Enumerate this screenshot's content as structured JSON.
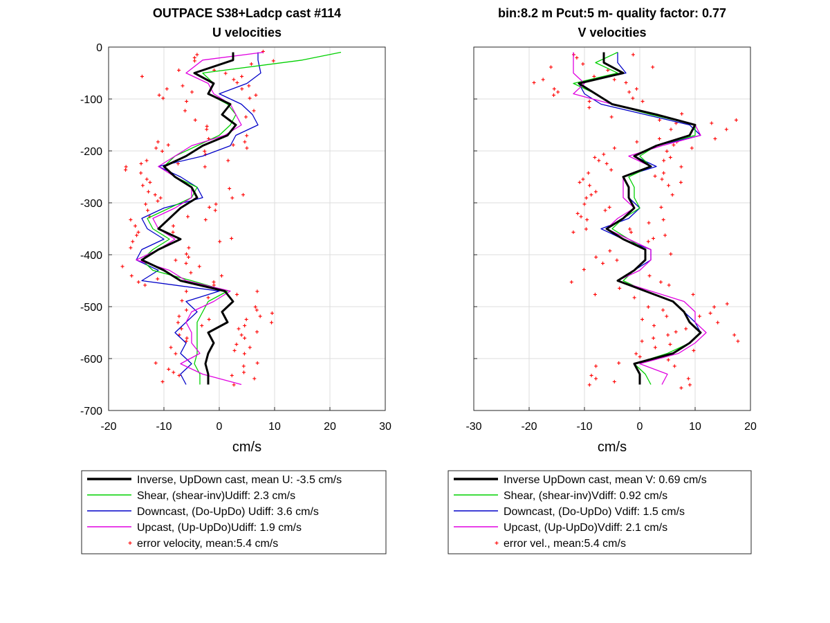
{
  "chart_data": [
    {
      "type": "line",
      "title": "OUTPACE S38+Ladcp cast #114",
      "subtitle": "U velocities",
      "xlabel": "cm/s",
      "ylabel": "",
      "xlim": [
        -20,
        30
      ],
      "ylim": [
        -700,
        0
      ],
      "xticks": [
        "-20",
        "-10",
        "0",
        "10",
        "20",
        "30"
      ],
      "yticks": [
        "0",
        "-100",
        "-200",
        "-300",
        "-400",
        "-500",
        "-600",
        "-700"
      ],
      "grid": true,
      "legend_position": "below",
      "depth": [
        -10,
        -25,
        -50,
        -70,
        -90,
        -110,
        -130,
        -150,
        -170,
        -190,
        -210,
        -230,
        -250,
        -270,
        -290,
        -310,
        -330,
        -350,
        -370,
        -390,
        -410,
        -430,
        -450,
        -470,
        -490,
        -510,
        -530,
        -550,
        -570,
        -590,
        -610,
        -630,
        -650
      ],
      "series": [
        {
          "name": "Inverse, UpDown cast, mean U:  -3.5 cm/s",
          "color": "#000000",
          "values": [
            2.5,
            2.5,
            -4.5,
            -1,
            -2,
            2,
            0.5,
            3,
            1.5,
            -3,
            -6,
            -10,
            -8,
            -5,
            -4,
            -7,
            -9,
            -11,
            -7,
            -11,
            -14,
            -10,
            -7,
            1,
            2.5,
            0.5,
            1.5,
            -2,
            -1,
            -2,
            -2.5,
            -2,
            -2
          ]
        },
        {
          "name": "Shear, (shear-inv)Udiff:  2.3 cm/s",
          "color": "#00d000",
          "values": [
            22,
            15,
            -3,
            -1,
            -2,
            1.5,
            3,
            2,
            0,
            -4,
            -8,
            -10,
            -8,
            -4,
            -5,
            -9,
            -13,
            -12,
            -9,
            -12,
            -14,
            -12,
            -5,
            1.5,
            -2,
            -3,
            -4,
            -4,
            -4,
            -4,
            -4.5,
            -3.5,
            -3.5
          ]
        },
        {
          "name": "Downcast, (Do-UpDo) Udiff:  3.6 cm/s",
          "color": "#0000c8",
          "values": [
            7,
            7,
            7.5,
            5,
            0,
            4,
            6,
            7,
            3,
            2,
            -3,
            -11,
            -7,
            -4,
            -3,
            -10,
            -14,
            -13,
            -10,
            -14,
            -15,
            -11,
            -14,
            0,
            -6,
            -4,
            -6,
            -8,
            -6,
            -7,
            -5,
            -7,
            -6
          ]
        },
        {
          "name": "Upcast, (Up-UpDo)Udiff:  1.9 cm/s",
          "color": "#e000e0",
          "values": [
            8,
            -3,
            -6,
            -2,
            -1,
            2,
            3,
            4,
            1,
            -5,
            -8,
            -11,
            -8,
            -5,
            -5,
            -8,
            -12,
            -11,
            -8,
            -11,
            -15,
            -9,
            -6,
            2,
            -1,
            -5,
            -6,
            -5,
            -5,
            -3.5,
            -7,
            -3,
            4
          ]
        },
        {
          "name": "error velocity, mean:5.4 cm/s",
          "color": "#ff0000",
          "marker": "dots",
          "values": []
        }
      ]
    },
    {
      "type": "line",
      "title": "bin:8.2 m  Pcut:5 m- quality factor:  0.77",
      "subtitle": "V velocities",
      "xlabel": "cm/s",
      "ylabel": "",
      "xlim": [
        -30,
        20
      ],
      "ylim": [
        -700,
        0
      ],
      "xticks": [
        "-30",
        "-20",
        "-10",
        "0",
        "10",
        "20"
      ],
      "grid": true,
      "legend_position": "below",
      "depth": [
        -10,
        -30,
        -50,
        -70,
        -90,
        -110,
        -130,
        -150,
        -170,
        -190,
        -210,
        -230,
        -250,
        -270,
        -290,
        -310,
        -330,
        -350,
        -370,
        -390,
        -410,
        -430,
        -450,
        -470,
        -490,
        -510,
        -530,
        -550,
        -570,
        -590,
        -610,
        -630,
        -650
      ],
      "series": [
        {
          "name": "Inverse UpDown cast, mean V:  0.69 cm/s",
          "color": "#000000",
          "values": [
            -6.5,
            -6.5,
            -3,
            -11,
            -8,
            -5,
            3,
            10,
            9,
            3,
            -1,
            2,
            -3,
            -2,
            -2,
            -1,
            -3,
            -6,
            -3,
            1,
            1,
            -1,
            -4,
            1,
            6,
            8,
            9,
            11,
            9,
            6,
            -1,
            0,
            0
          ]
        },
        {
          "name": "Shear, (shear-inv)Vdiff:  0.92 cm/s",
          "color": "#00d000",
          "values": [
            -4,
            -8,
            -4,
            -12,
            -8,
            -5,
            2,
            10,
            10,
            3,
            0,
            2,
            -2,
            -1,
            -1,
            0,
            -3,
            -5,
            -2,
            1,
            1,
            -1,
            -3,
            1,
            6,
            8,
            9,
            11,
            9,
            5,
            -1,
            1,
            2
          ]
        },
        {
          "name": "Downcast, (Do-UpDo) Vdiff:  1.5 cm/s",
          "color": "#0000c8",
          "values": [
            -4,
            -4,
            -2.5,
            -11,
            -10,
            -7,
            1,
            9,
            11,
            3,
            -1,
            3,
            -3,
            -2,
            -2,
            0,
            -2,
            -7,
            -3,
            2,
            2,
            -1,
            -4,
            1,
            6,
            8,
            10,
            11,
            9,
            6,
            -1,
            0,
            0
          ]
        },
        {
          "name": "Upcast, (Up-UpDo)Vdiff:  2.1 cm/s",
          "color": "#e000e0",
          "values": [
            -12,
            -12,
            -12,
            -10,
            -12,
            -5,
            3,
            10,
            11,
            4,
            -2,
            2,
            -3,
            -3,
            -3,
            -1,
            -4,
            -6,
            -2,
            2,
            2,
            0,
            -4,
            2,
            8,
            10,
            10,
            12,
            10,
            7,
            0,
            5,
            4
          ]
        },
        {
          "name": "error vel., mean:5.4 cm/s",
          "color": "#ff0000",
          "marker": "dots",
          "values": []
        }
      ]
    }
  ]
}
